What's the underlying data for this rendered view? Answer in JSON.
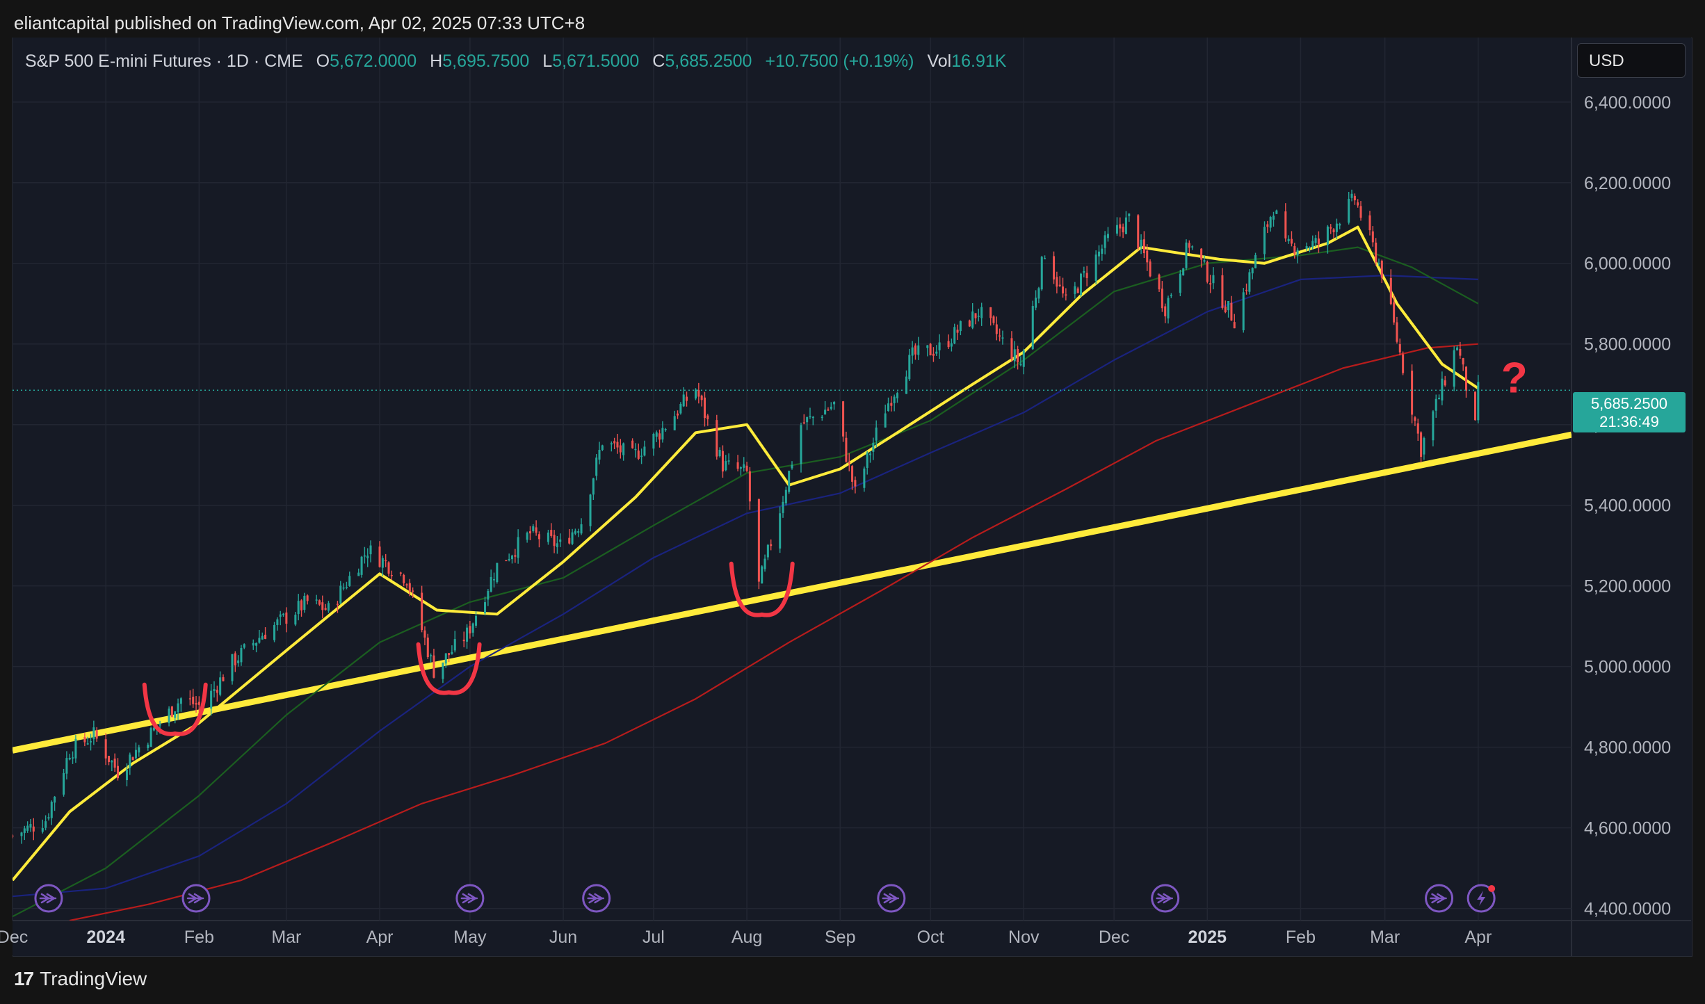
{
  "header": {
    "publish_text": "eliantcapital published on TradingView.com, Apr 02, 2025 07:33 UTC+8"
  },
  "legend": {
    "symbol": "S&P 500 E-mini Futures · 1D · CME",
    "open_label": "O",
    "open": "5,672.0000",
    "high_label": "H",
    "high": "5,695.7500",
    "low_label": "L",
    "low": "5,671.5000",
    "close_label": "C",
    "close": "5,685.2500",
    "change": "+10.7500 (+0.19%)",
    "vol_label": "Vol",
    "vol": "16.91K"
  },
  "currency_button": "USD",
  "price_tag": {
    "price": "5,685.2500",
    "countdown": "21:36:49"
  },
  "annotation": {
    "question_mark": "?"
  },
  "footer": {
    "brand": "TradingView",
    "brand_mark": "17"
  },
  "colors": {
    "background": "#161a25",
    "up": "#26a69a",
    "down": "#ef5350",
    "trendline": "#ffeb3b",
    "ma_fast": "#ffeb3b",
    "ma_mid": "#1b5e20",
    "ma_slow": "#1a237e",
    "ma_long": "#b71c1c",
    "annotation": "#f23645",
    "event_icon": "#7e57c2"
  },
  "chart_data": {
    "type": "candlestick",
    "title": "S&P 500 E-mini Futures · 1D · CME",
    "y_axis": {
      "ticks": [
        "6,400.0000",
        "6,200.0000",
        "6,000.0000",
        "5,800.0000",
        "5,600.0000",
        "5,400.0000",
        "5,200.0000",
        "5,000.0000",
        "4,800.0000",
        "4,600.0000",
        "4,400.0000"
      ],
      "tick_values": [
        6400,
        6200,
        6000,
        5800,
        5600,
        5400,
        5200,
        5000,
        4800,
        4600,
        4400
      ],
      "ylim": [
        4370,
        6560
      ]
    },
    "x_axis": {
      "labels": [
        "Dec",
        "2024",
        "Feb",
        "Mar",
        "Apr",
        "May",
        "Jun",
        "Jul",
        "Aug",
        "Sep",
        "Oct",
        "Nov",
        "Dec",
        "2025",
        "Feb",
        "Mar",
        "Apr"
      ],
      "bold_labels": [
        "2024",
        "2025"
      ],
      "label_dates": [
        "2023-12-01",
        "2024-01-01",
        "2024-02-01",
        "2024-03-01",
        "2024-04-01",
        "2024-05-01",
        "2024-06-01",
        "2024-07-01",
        "2024-08-01",
        "2024-09-01",
        "2024-10-01",
        "2024-11-01",
        "2024-12-01",
        "2025-01-01",
        "2025-02-01",
        "2025-03-01",
        "2025-04-01"
      ],
      "xlim": [
        "2023-12-01",
        "2025-05-02"
      ]
    },
    "grid": true,
    "last_price": 5685.25,
    "price_path": [
      {
        "date": "2023-12-01",
        "close": 4580
      },
      {
        "date": "2023-12-12",
        "close": 4620
      },
      {
        "date": "2023-12-20",
        "close": 4790
      },
      {
        "date": "2023-12-28",
        "close": 4830
      },
      {
        "date": "2024-01-05",
        "close": 4740
      },
      {
        "date": "2024-01-12",
        "close": 4800
      },
      {
        "date": "2024-01-19",
        "close": 4860
      },
      {
        "date": "2024-01-26",
        "close": 4920
      },
      {
        "date": "2024-02-02",
        "close": 4900
      },
      {
        "date": "2024-02-12",
        "close": 5010
      },
      {
        "date": "2024-02-22",
        "close": 5080
      },
      {
        "date": "2024-03-08",
        "close": 5160
      },
      {
        "date": "2024-03-15",
        "close": 5140
      },
      {
        "date": "2024-03-28",
        "close": 5290
      },
      {
        "date": "2024-04-10",
        "close": 5220
      },
      {
        "date": "2024-04-19",
        "close": 4990
      },
      {
        "date": "2024-04-30",
        "close": 5080
      },
      {
        "date": "2024-05-10",
        "close": 5250
      },
      {
        "date": "2024-05-21",
        "close": 5330
      },
      {
        "date": "2024-05-31",
        "close": 5300
      },
      {
        "date": "2024-06-07",
        "close": 5360
      },
      {
        "date": "2024-06-14",
        "close": 5560
      },
      {
        "date": "2024-06-24",
        "close": 5520
      },
      {
        "date": "2024-07-03",
        "close": 5580
      },
      {
        "date": "2024-07-15",
        "close": 5690
      },
      {
        "date": "2024-07-24",
        "close": 5500
      },
      {
        "date": "2024-08-01",
        "close": 5480
      },
      {
        "date": "2024-08-05",
        "close": 5200
      },
      {
        "date": "2024-08-12",
        "close": 5390
      },
      {
        "date": "2024-08-19",
        "close": 5600
      },
      {
        "date": "2024-08-30",
        "close": 5650
      },
      {
        "date": "2024-09-06",
        "close": 5430
      },
      {
        "date": "2024-09-16",
        "close": 5640
      },
      {
        "date": "2024-09-25",
        "close": 5770
      },
      {
        "date": "2024-10-04",
        "close": 5790
      },
      {
        "date": "2024-10-17",
        "close": 5880
      },
      {
        "date": "2024-10-31",
        "close": 5750
      },
      {
        "date": "2024-11-08",
        "close": 6030
      },
      {
        "date": "2024-11-15",
        "close": 5900
      },
      {
        "date": "2024-11-29",
        "close": 6060
      },
      {
        "date": "2024-12-06",
        "close": 6110
      },
      {
        "date": "2024-12-18",
        "close": 5890
      },
      {
        "date": "2024-12-26",
        "close": 6050
      },
      {
        "date": "2025-01-10",
        "close": 5860
      },
      {
        "date": "2025-01-23",
        "close": 6140
      },
      {
        "date": "2025-01-27",
        "close": 6040
      },
      {
        "date": "2025-02-07",
        "close": 6050
      },
      {
        "date": "2025-02-19",
        "close": 6160
      },
      {
        "date": "2025-02-28",
        "close": 5980
      },
      {
        "date": "2025-03-13",
        "close": 5540
      },
      {
        "date": "2025-03-25",
        "close": 5800
      },
      {
        "date": "2025-03-31",
        "close": 5590
      },
      {
        "date": "2025-04-01",
        "close": 5685.25
      }
    ],
    "moving_averages": [
      {
        "color": "#ffeb3b",
        "points": [
          [
            "2023-12-01",
            4470
          ],
          [
            "2023-12-20",
            4640
          ],
          [
            "2024-01-10",
            4760
          ],
          [
            "2024-02-01",
            4860
          ],
          [
            "2024-03-01",
            5040
          ],
          [
            "2024-04-01",
            5230
          ],
          [
            "2024-04-20",
            5140
          ],
          [
            "2024-05-10",
            5130
          ],
          [
            "2024-06-01",
            5260
          ],
          [
            "2024-06-25",
            5420
          ],
          [
            "2024-07-15",
            5580
          ],
          [
            "2024-08-01",
            5600
          ],
          [
            "2024-08-15",
            5450
          ],
          [
            "2024-09-01",
            5490
          ],
          [
            "2024-09-20",
            5580
          ],
          [
            "2024-10-15",
            5700
          ],
          [
            "2024-11-01",
            5780
          ],
          [
            "2024-11-20",
            5920
          ],
          [
            "2024-12-10",
            6040
          ],
          [
            "2025-01-05",
            6010
          ],
          [
            "2025-01-20",
            6000
          ],
          [
            "2025-02-10",
            6050
          ],
          [
            "2025-02-20",
            6090
          ],
          [
            "2025-03-05",
            5900
          ],
          [
            "2025-03-20",
            5750
          ],
          [
            "2025-04-01",
            5690
          ]
        ]
      },
      {
        "color": "#1b5e20",
        "points": [
          [
            "2023-12-01",
            4380
          ],
          [
            "2024-01-01",
            4500
          ],
          [
            "2024-02-01",
            4680
          ],
          [
            "2024-03-01",
            4880
          ],
          [
            "2024-04-01",
            5060
          ],
          [
            "2024-05-01",
            5160
          ],
          [
            "2024-06-01",
            5220
          ],
          [
            "2024-07-01",
            5350
          ],
          [
            "2024-08-01",
            5480
          ],
          [
            "2024-09-01",
            5520
          ],
          [
            "2024-10-01",
            5610
          ],
          [
            "2024-11-01",
            5760
          ],
          [
            "2024-12-01",
            5930
          ],
          [
            "2025-01-01",
            6000
          ],
          [
            "2025-02-01",
            6020
          ],
          [
            "2025-02-20",
            6040
          ],
          [
            "2025-03-10",
            5990
          ],
          [
            "2025-04-01",
            5900
          ]
        ]
      },
      {
        "color": "#1a237e",
        "points": [
          [
            "2023-12-01",
            4430
          ],
          [
            "2024-01-01",
            4450
          ],
          [
            "2024-02-01",
            4530
          ],
          [
            "2024-03-01",
            4660
          ],
          [
            "2024-04-01",
            4840
          ],
          [
            "2024-05-01",
            5000
          ],
          [
            "2024-06-01",
            5130
          ],
          [
            "2024-07-01",
            5270
          ],
          [
            "2024-08-01",
            5380
          ],
          [
            "2024-09-01",
            5430
          ],
          [
            "2024-10-01",
            5530
          ],
          [
            "2024-11-01",
            5630
          ],
          [
            "2024-12-01",
            5760
          ],
          [
            "2025-01-01",
            5880
          ],
          [
            "2025-02-01",
            5960
          ],
          [
            "2025-03-01",
            5970
          ],
          [
            "2025-04-01",
            5960
          ]
        ]
      },
      {
        "color": "#b71c1c",
        "points": [
          [
            "2023-12-20",
            4370
          ],
          [
            "2024-01-15",
            4410
          ],
          [
            "2024-02-15",
            4470
          ],
          [
            "2024-03-15",
            4560
          ],
          [
            "2024-04-15",
            4660
          ],
          [
            "2024-05-15",
            4730
          ],
          [
            "2024-06-15",
            4810
          ],
          [
            "2024-07-15",
            4920
          ],
          [
            "2024-08-15",
            5060
          ],
          [
            "2024-09-15",
            5190
          ],
          [
            "2024-10-15",
            5320
          ],
          [
            "2024-11-15",
            5440
          ],
          [
            "2024-12-15",
            5560
          ],
          [
            "2025-01-15",
            5650
          ],
          [
            "2025-02-15",
            5740
          ],
          [
            "2025-03-15",
            5790
          ],
          [
            "2025-04-01",
            5800
          ]
        ]
      }
    ],
    "trendline": {
      "color": "#ffeb3b",
      "points": [
        [
          "2023-12-01",
          4792
        ],
        [
          "2025-05-02",
          5575
        ]
      ]
    },
    "event_marker_dates": [
      "2023-12-13",
      "2024-01-31",
      "2024-05-01",
      "2024-06-12",
      "2024-09-18",
      "2024-12-18",
      "2025-03-19",
      "2025-04-02"
    ]
  }
}
